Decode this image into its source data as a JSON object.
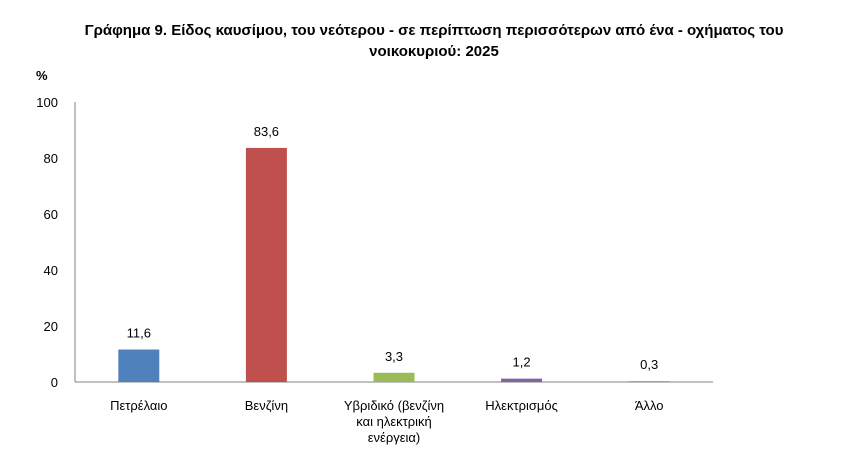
{
  "title_lines": [
    "Γράφημα 9. Είδος καυσίμου, του νεότερου - σε περίπτωση περισσότερων από ένα - οχήματος του",
    "νοικοκυριού: 2025"
  ],
  "chart_data": {
    "type": "bar",
    "title": "Γράφημα 9. Είδος καυσίμου, του νεότερου - σε περίπτωση περισσότερων από ένα - οχήματος του νοικοκυριού: 2025",
    "ylabel": "%",
    "xlabel": "",
    "ylim": [
      0,
      100
    ],
    "yticks": [
      0,
      20,
      40,
      60,
      80,
      100
    ],
    "categories": [
      [
        "Πετρέλαιο"
      ],
      [
        "Βενζίνη"
      ],
      [
        "Υβριδικό (βενζίνη",
        "και ηλεκτρική",
        "ενέργεια)"
      ],
      [
        "Ηλεκτρισμός"
      ],
      [
        "Άλλο"
      ]
    ],
    "values": [
      11.6,
      83.6,
      3.3,
      1.2,
      0.3
    ],
    "value_labels": [
      "11,6",
      "83,6",
      "3,3",
      "1,2",
      "0,3"
    ],
    "colors": [
      "#4F81BD",
      "#C0504D",
      "#9BBB59",
      "#8064A2",
      "#4BACC6"
    ],
    "grid": false,
    "legend": "none"
  }
}
